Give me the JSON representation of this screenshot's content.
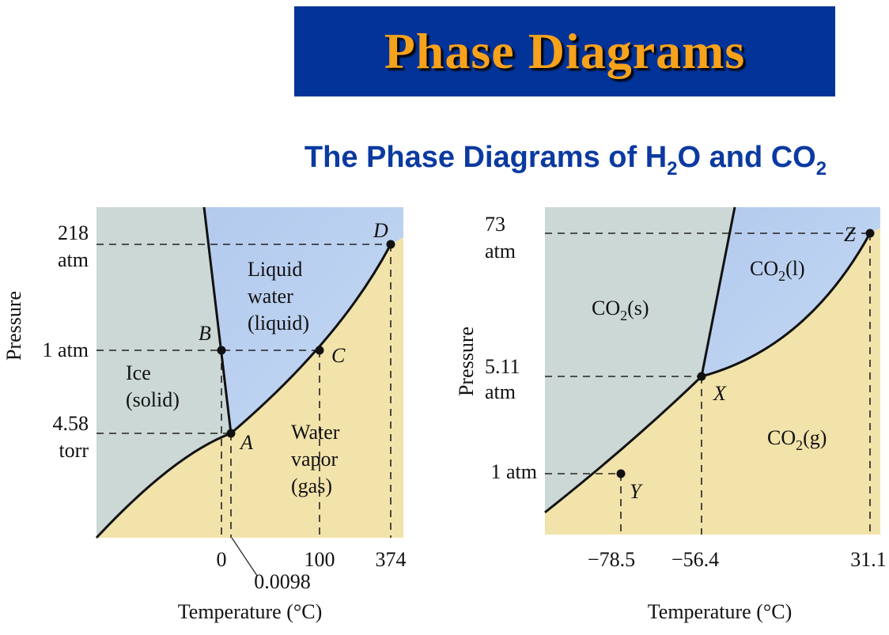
{
  "title": "Phase Diagrams",
  "subtitle": {
    "part1": "The Phase Diagrams of H",
    "sub1": "2",
    "part2": "O and CO",
    "sub2": "2"
  },
  "colors": {
    "title_bg": "#023399",
    "title_text": "#f7a21b",
    "subtitle_text": "#0b3aa0",
    "solid_region": "#cbd8d5",
    "liquid_region": "#b7cff0",
    "gas_region": "#f2e3ab"
  },
  "water": {
    "y_axis_label": "Pressure",
    "x_axis_label": "Temperature (°C)",
    "pressure_labels": {
      "p218_line1": "218",
      "p218_line2": "atm",
      "p1": "1 atm",
      "p458_line1": "4.58",
      "p458_line2": "torr"
    },
    "temp_labels": {
      "t0": "0",
      "t00098": "0.0098",
      "t100": "100",
      "t374": "374"
    },
    "regions": {
      "solid_line1": "Ice",
      "solid_line2": "(solid)",
      "liquid_line1": "Liquid",
      "liquid_line2": "water",
      "liquid_line3": "(liquid)",
      "gas_line1": "Water",
      "gas_line2": "vapor",
      "gas_line3": "(gas)"
    },
    "points": {
      "A": "A",
      "B": "B",
      "C": "C",
      "D": "D"
    }
  },
  "co2": {
    "y_axis_label": "Pressure",
    "x_axis_label": "Temperature (°C)",
    "pressure_labels": {
      "p73_line1": "73",
      "p73_line2": "atm",
      "p511_line1": "5.11",
      "p511_line2": "atm",
      "p1": "1 atm"
    },
    "temp_labels": {
      "t785": "−78.5",
      "t564": "−56.4",
      "t311": "31.1"
    },
    "regions": {
      "solid_main": "CO",
      "solid_sub": "2",
      "solid_state": "(s)",
      "liquid_main": "CO",
      "liquid_sub": "2",
      "liquid_state": "(l)",
      "gas_main": "CO",
      "gas_sub": "2",
      "gas_state": "(g)"
    },
    "points": {
      "X": "X",
      "Y": "Y",
      "Z": "Z"
    }
  }
}
